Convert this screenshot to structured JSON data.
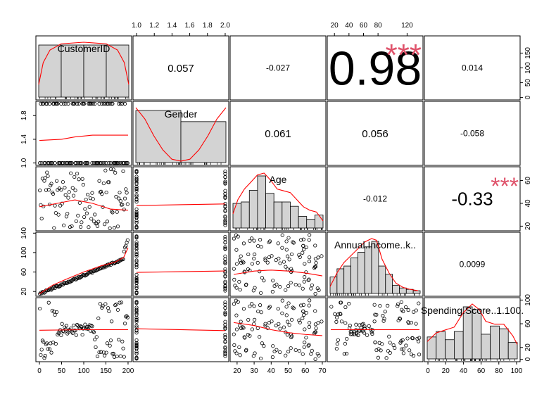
{
  "chart_data": {
    "type": "scatter-matrix",
    "variables": [
      "CustomerID",
      "Gender",
      "Age",
      "Annual.Income..k..",
      "Spending.Score..1.100."
    ],
    "variable_labels": [
      "CustomerID",
      "Gender",
      "Age",
      "Annual.Income..k..",
      "Spending.Score..1.100."
    ],
    "correlations": [
      {
        "row": 0,
        "col": 1,
        "label": "0.057",
        "stars": "",
        "size": "small"
      },
      {
        "row": 0,
        "col": 2,
        "label": "-0.027",
        "stars": "",
        "size": "tiny"
      },
      {
        "row": 0,
        "col": 3,
        "label": "0.98",
        "stars": "***",
        "size": "huge"
      },
      {
        "row": 0,
        "col": 4,
        "label": "0.014",
        "stars": "",
        "size": "tiny"
      },
      {
        "row": 1,
        "col": 2,
        "label": "0.061",
        "stars": "",
        "size": "small"
      },
      {
        "row": 1,
        "col": 3,
        "label": "0.056",
        "stars": "",
        "size": "small"
      },
      {
        "row": 1,
        "col": 4,
        "label": "-0.058",
        "stars": "",
        "size": "tiny"
      },
      {
        "row": 2,
        "col": 3,
        "label": "-0.012",
        "stars": "",
        "size": "tiny"
      },
      {
        "row": 2,
        "col": 4,
        "label": "-0.33",
        "stars": "***",
        "size": "large"
      },
      {
        "row": 3,
        "col": 4,
        "label": "0.0099",
        "stars": "",
        "size": "tiny"
      }
    ],
    "axes": [
      {
        "var": 0,
        "side": "bottom",
        "range": [
          0,
          200
        ],
        "ticks": [
          "0",
          "50",
          "100",
          "150",
          "200"
        ]
      },
      {
        "var": 1,
        "side": "top",
        "range": [
          1,
          2
        ],
        "ticks": [
          "1.0",
          "1.2",
          "1.4",
          "1.6",
          "1.8",
          "2.0"
        ]
      },
      {
        "var": 2,
        "side": "bottom",
        "range": [
          18,
          70
        ],
        "ticks": [
          "20",
          "30",
          "40",
          "50",
          "60",
          "70"
        ]
      },
      {
        "var": 3,
        "side": "top",
        "range": [
          15,
          137
        ],
        "ticks": [
          "20",
          "40",
          "60",
          "80",
          "120"
        ]
      },
      {
        "var": 4,
        "side": "bottom",
        "range": [
          0,
          100
        ],
        "ticks": [
          "0",
          "20",
          "40",
          "60",
          "80",
          "100"
        ]
      },
      {
        "var": 1,
        "side": "left",
        "range": [
          1,
          2
        ],
        "ticks": [
          "1.0",
          "1.4",
          "1.8"
        ]
      },
      {
        "var": 3,
        "side": "left",
        "range": [
          15,
          137
        ],
        "ticks": [
          "20",
          "60",
          "100",
          "140"
        ]
      },
      {
        "var": 0,
        "side": "right",
        "range": [
          0,
          200
        ],
        "ticks": [
          "0",
          "50",
          "100",
          "150"
        ]
      },
      {
        "var": 2,
        "side": "right",
        "range": [
          18,
          70
        ],
        "ticks": [
          "20",
          "40",
          "60"
        ]
      },
      {
        "var": 4,
        "side": "right",
        "range": [
          0,
          100
        ],
        "ticks": [
          "0",
          "20",
          "60",
          "100"
        ]
      }
    ],
    "histograms": [
      {
        "var": 0,
        "breaks": [
          0,
          50,
          100,
          150,
          200
        ],
        "counts": [
          50,
          50,
          50,
          50
        ],
        "density": [
          [
            0,
            0.4
          ],
          [
            10,
            1.1
          ],
          [
            25,
            1.5
          ],
          [
            50,
            1.7
          ],
          [
            100,
            1.75
          ],
          [
            150,
            1.7
          ],
          [
            175,
            1.5
          ],
          [
            190,
            1.1
          ],
          [
            200,
            0.4
          ]
        ]
      },
      {
        "var": 1,
        "breaks": [
          1,
          1.5,
          2
        ],
        "counts": [
          112,
          88
        ],
        "density": [
          [
            1,
            1.95
          ],
          [
            1.1,
            1.55
          ],
          [
            1.2,
            0.95
          ],
          [
            1.3,
            0.45
          ],
          [
            1.4,
            0.12
          ],
          [
            1.5,
            0.05
          ],
          [
            1.6,
            0.12
          ],
          [
            1.7,
            0.45
          ],
          [
            1.8,
            0.95
          ],
          [
            1.9,
            1.55
          ],
          [
            2,
            1.95
          ]
        ]
      },
      {
        "var": 2,
        "breaks": [
          15,
          20,
          25,
          30,
          35,
          40,
          45,
          50,
          55,
          60,
          65,
          70
        ],
        "counts": [
          17,
          18,
          26,
          36,
          24,
          18,
          18,
          15,
          8,
          6,
          9
        ],
        "density": [
          [
            15,
            0.008
          ],
          [
            18,
            0.016
          ],
          [
            22,
            0.022
          ],
          [
            26,
            0.026
          ],
          [
            30,
            0.03
          ],
          [
            34,
            0.031
          ],
          [
            38,
            0.027
          ],
          [
            42,
            0.022
          ],
          [
            46,
            0.021
          ],
          [
            50,
            0.02
          ],
          [
            54,
            0.016
          ],
          [
            58,
            0.012
          ],
          [
            62,
            0.01
          ],
          [
            66,
            0.009
          ],
          [
            70,
            0.004
          ]
        ]
      },
      {
        "var": 3,
        "breaks": [
          10,
          20,
          30,
          40,
          50,
          60,
          70,
          80,
          90,
          100,
          110,
          120,
          130,
          140
        ],
        "counts": [
          12,
          18,
          20,
          26,
          30,
          34,
          38,
          20,
          14,
          6,
          4,
          3,
          2
        ],
        "density": [
          [
            10,
            0.002
          ],
          [
            20,
            0.006
          ],
          [
            30,
            0.009
          ],
          [
            40,
            0.011
          ],
          [
            50,
            0.013
          ],
          [
            60,
            0.015
          ],
          [
            70,
            0.016
          ],
          [
            77,
            0.0155
          ],
          [
            85,
            0.01
          ],
          [
            95,
            0.006
          ],
          [
            105,
            0.003
          ],
          [
            115,
            0.0018
          ],
          [
            125,
            0.0012
          ],
          [
            137,
            0.0008
          ]
        ]
      },
      {
        "var": 4,
        "breaks": [
          0,
          10,
          20,
          30,
          40,
          50,
          60,
          70,
          80,
          90,
          100
        ],
        "counts": [
          16,
          20,
          14,
          20,
          38,
          36,
          18,
          24,
          22,
          12
        ],
        "density": [
          [
            0,
            0.006
          ],
          [
            10,
            0.009
          ],
          [
            20,
            0.01
          ],
          [
            30,
            0.011
          ],
          [
            40,
            0.016
          ],
          [
            50,
            0.019
          ],
          [
            58,
            0.017
          ],
          [
            65,
            0.013
          ],
          [
            75,
            0.012
          ],
          [
            85,
            0.012
          ],
          [
            95,
            0.008
          ],
          [
            100,
            0.005
          ]
        ]
      }
    ],
    "scatter": [
      {
        "row": 1,
        "col": 0,
        "x_var": 0,
        "y_var": 1,
        "generator": "gender-strip",
        "smooth": [
          [
            0,
            1.38
          ],
          [
            50,
            1.4
          ],
          [
            80,
            1.44
          ],
          [
            120,
            1.47
          ],
          [
            200,
            1.47
          ]
        ]
      },
      {
        "row": 2,
        "col": 0,
        "x_var": 0,
        "y_var": 2,
        "generator": "age-by-id",
        "smooth": [
          [
            0,
            37
          ],
          [
            40,
            40
          ],
          [
            80,
            43
          ],
          [
            120,
            40
          ],
          [
            160,
            35
          ],
          [
            200,
            34
          ]
        ]
      },
      {
        "row": 2,
        "col": 1,
        "x_var": 1,
        "y_var": 2,
        "generator": "gender-vertical",
        "smooth": [
          [
            1,
            38.1
          ],
          [
            2,
            39.5
          ]
        ]
      },
      {
        "row": 3,
        "col": 0,
        "x_var": 0,
        "y_var": 3,
        "generator": "income-by-id",
        "smooth": [
          [
            0,
            15
          ],
          [
            30,
            33
          ],
          [
            60,
            45
          ],
          [
            100,
            60
          ],
          [
            140,
            73
          ],
          [
            170,
            80
          ],
          [
            190,
            90
          ],
          [
            200,
            110
          ]
        ]
      },
      {
        "row": 3,
        "col": 1,
        "x_var": 1,
        "y_var": 3,
        "generator": "gender-vertical",
        "smooth": [
          [
            1,
            59.3
          ],
          [
            2,
            62.2
          ]
        ]
      },
      {
        "row": 3,
        "col": 2,
        "x_var": 2,
        "y_var": 3,
        "generator": "cloud",
        "smooth": [
          [
            18,
            55
          ],
          [
            30,
            62
          ],
          [
            40,
            64
          ],
          [
            50,
            62
          ],
          [
            60,
            58
          ],
          [
            70,
            52
          ]
        ]
      },
      {
        "row": 4,
        "col": 0,
        "x_var": 0,
        "y_var": 4,
        "generator": "spend-by-id",
        "smooth": [
          [
            0,
            49
          ],
          [
            100,
            50
          ],
          [
            200,
            50
          ]
        ]
      },
      {
        "row": 4,
        "col": 1,
        "x_var": 1,
        "y_var": 4,
        "generator": "gender-vertical",
        "smooth": [
          [
            1,
            51.5
          ],
          [
            2,
            48.5
          ]
        ]
      },
      {
        "row": 4,
        "col": 2,
        "x_var": 2,
        "y_var": 4,
        "generator": "cloud",
        "smooth": [
          [
            18,
            62
          ],
          [
            30,
            57
          ],
          [
            40,
            50
          ],
          [
            50,
            45
          ],
          [
            60,
            42
          ],
          [
            70,
            40
          ]
        ]
      },
      {
        "row": 4,
        "col": 3,
        "x_var": 3,
        "y_var": 4,
        "generator": "income-spend",
        "smooth": [
          [
            15,
            50
          ],
          [
            137,
            50
          ]
        ]
      }
    ],
    "colors": {
      "smooth": "#ff0000",
      "stars": "#DF536B",
      "bar_fill": "#d3d3d3"
    },
    "title": "",
    "xlabel": "",
    "ylabel": ""
  }
}
